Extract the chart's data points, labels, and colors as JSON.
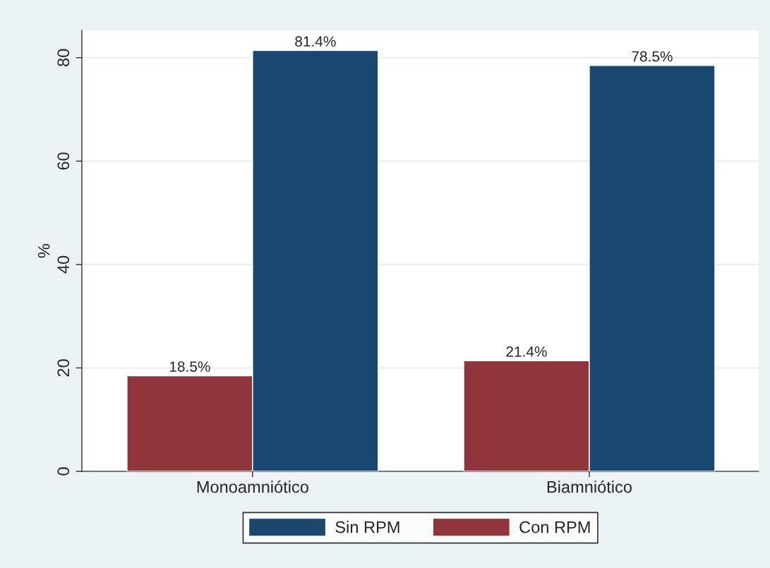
{
  "chart_data": {
    "type": "bar",
    "ylabel": "%",
    "categories": [
      "Monoamniótico",
      "Biamniótico"
    ],
    "series": [
      {
        "name": "Con RPM",
        "color": "#90353b",
        "values": [
          18.5,
          21.4
        ],
        "value_labels": [
          "18.5%",
          "21.4%"
        ]
      },
      {
        "name": "Sin RPM",
        "color": "#1a476f",
        "values": [
          81.4,
          78.5
        ],
        "value_labels": [
          "81.4%",
          "78.5%"
        ]
      }
    ],
    "ylim": [
      0,
      85.3
    ],
    "yticks": [
      0,
      20,
      40,
      60,
      80
    ],
    "grid": "y",
    "legend": "bottom"
  }
}
